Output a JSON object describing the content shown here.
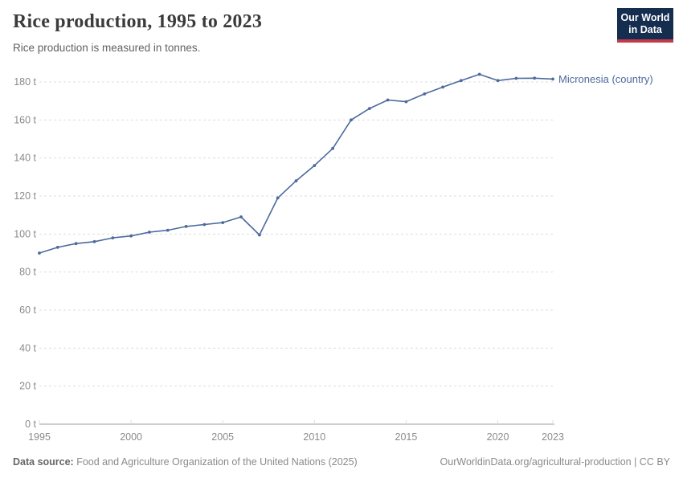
{
  "header": {
    "title": "Rice production, 1995 to 2023",
    "subtitle": "Rice production is measured in tonnes."
  },
  "logo": {
    "line1": "Our World",
    "line2": "in Data"
  },
  "chart_data": {
    "type": "line",
    "title": "Rice production, 1995 to 2023",
    "ylabel": "",
    "xlabel": "",
    "unit": "tonnes",
    "x": [
      1995,
      1996,
      1997,
      1998,
      1999,
      2000,
      2001,
      2002,
      2003,
      2004,
      2005,
      2006,
      2007,
      2008,
      2009,
      2010,
      2011,
      2012,
      2013,
      2014,
      2015,
      2016,
      2017,
      2018,
      2019,
      2020,
      2021,
      2022,
      2023
    ],
    "series": [
      {
        "name": "Micronesia (country)",
        "values": [
          90,
          93,
          95,
          96,
          98,
          99,
          101,
          102,
          104,
          105,
          106,
          109,
          99.5,
          119,
          128,
          136,
          145,
          160,
          166,
          170.5,
          169.6,
          173.7,
          177.3,
          180.7,
          184,
          180.7,
          181.9,
          182,
          181.5
        ]
      }
    ],
    "xlim": [
      1995,
      2023
    ],
    "ylim": [
      0,
      190
    ],
    "x_ticks": [
      1995,
      2000,
      2005,
      2010,
      2015,
      2020,
      2023
    ],
    "y_ticks": [
      0,
      20,
      40,
      60,
      80,
      100,
      120,
      140,
      160,
      180
    ],
    "y_tick_suffix": " t",
    "grid": "horizontal-dashed",
    "legend_position": "end-of-line-label"
  },
  "colors": {
    "line": "#4c6a9c",
    "grid": "#dddddd",
    "axis": "#9e9e9e",
    "tick_text": "#8a8a8a",
    "series_label": "#4c6a9c",
    "logo_bg": "#152d4f",
    "logo_accent": "#c43a4a"
  },
  "footer": {
    "datasource_label": "Data source:",
    "datasource_value": " Food and Agriculture Organization of the United Nations (2025)",
    "credit": "OurWorldinData.org/agricultural-production | CC BY"
  }
}
